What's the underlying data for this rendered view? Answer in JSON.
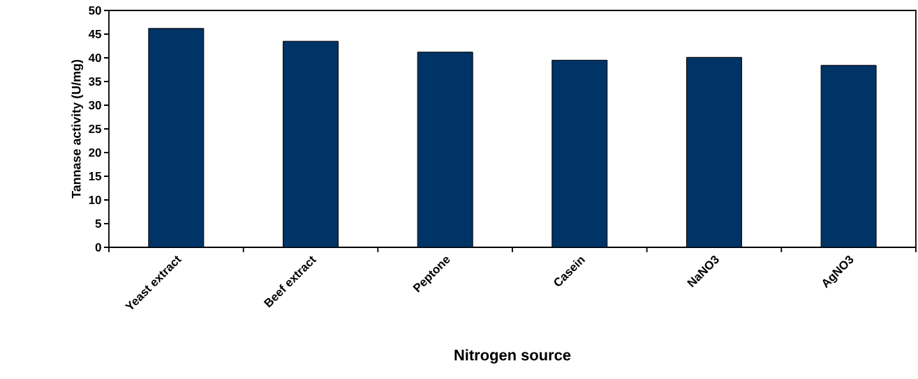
{
  "chart_data": {
    "type": "bar",
    "xlabel": "Nitrogen source",
    "ylabel": "Tannase activity (U/mg)",
    "categories": [
      "Yeast extract",
      "Beef extract",
      "Peptone",
      "Casein",
      "NaNO3",
      "AgNO3"
    ],
    "values": [
      46.2,
      43.5,
      41.2,
      39.5,
      40.1,
      38.4
    ],
    "color": "#003366",
    "ylim": [
      0,
      50
    ],
    "yticks": [
      0,
      5,
      10,
      15,
      20,
      25,
      30,
      35,
      40,
      45,
      50
    ],
    "grid": false
  }
}
